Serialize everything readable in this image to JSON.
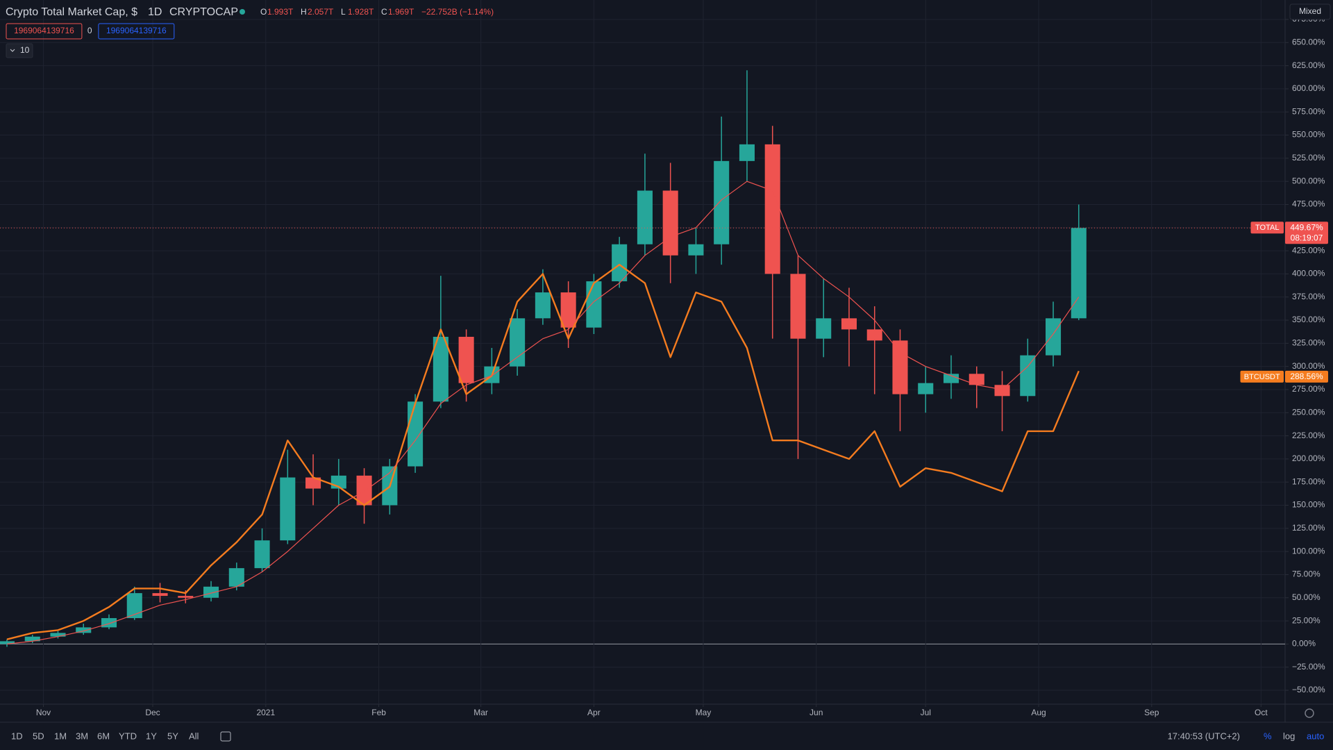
{
  "header": {
    "symbol": "Crypto Total Market Cap, $",
    "interval": "1D",
    "exchange": "CRYPTOCAP",
    "ohlc": [
      {
        "key": "O",
        "value": "1.993T"
      },
      {
        "key": "H",
        "value": "2.057T"
      },
      {
        "key": "L",
        "value": "1.928T"
      },
      {
        "key": "C",
        "value": "1.969T"
      }
    ],
    "change": "−22.752B (−1.14%)",
    "badges": [
      "1969064139716",
      "0",
      "1969064139716"
    ],
    "collapse": "10"
  },
  "scale_mode": "Mixed",
  "chart_data": {
    "type": "candlestick",
    "x": [
      -10,
      -3,
      4,
      11,
      18,
      25,
      32,
      39,
      46,
      53,
      60,
      67,
      74,
      81,
      88,
      95,
      102,
      109,
      116,
      123,
      130,
      137,
      144,
      151,
      158,
      165,
      172,
      179,
      186,
      193,
      200,
      207,
      214,
      221,
      228,
      235,
      242,
      249,
      256,
      263,
      270,
      277,
      284
    ],
    "xlim": [
      -11.9,
      340.6
    ],
    "xticks": [
      {
        "value": 0,
        "label": "Nov"
      },
      {
        "value": 30,
        "label": "Dec"
      },
      {
        "value": 61,
        "label": "2021"
      },
      {
        "value": 92,
        "label": "Feb"
      },
      {
        "value": 120,
        "label": "Mar"
      },
      {
        "value": 151,
        "label": "Apr"
      },
      {
        "value": 181,
        "label": "May"
      },
      {
        "value": 212,
        "label": "Jun"
      },
      {
        "value": 242,
        "label": "Jul"
      },
      {
        "value": 273,
        "label": "Aug"
      },
      {
        "value": 304,
        "label": "Sep"
      },
      {
        "value": 334,
        "label": "Oct"
      }
    ],
    "ylim": [
      -65,
      696
    ],
    "yticks": [
      {
        "value": -50,
        "label": "−50.00%"
      },
      {
        "value": -25,
        "label": "−25.00%"
      },
      {
        "value": 0,
        "label": "0.00%"
      },
      {
        "value": 25,
        "label": "25.00%"
      },
      {
        "value": 50,
        "label": "50.00%"
      },
      {
        "value": 75,
        "label": "75.00%"
      },
      {
        "value": 100,
        "label": "100.00%"
      },
      {
        "value": 125,
        "label": "125.00%"
      },
      {
        "value": 150,
        "label": "150.00%"
      },
      {
        "value": 175,
        "label": "175.00%"
      },
      {
        "value": 200,
        "label": "200.00%"
      },
      {
        "value": 225,
        "label": "225.00%"
      },
      {
        "value": 250,
        "label": "250.00%"
      },
      {
        "value": 275,
        "label": "275.00%"
      },
      {
        "value": 300,
        "label": "300.00%"
      },
      {
        "value": 325,
        "label": "325.00%"
      },
      {
        "value": 350,
        "label": "350.00%"
      },
      {
        "value": 375,
        "label": "375.00%"
      },
      {
        "value": 400,
        "label": "400.00%"
      },
      {
        "value": 425,
        "label": "425.00%"
      },
      {
        "value": 450,
        "label": "450.00%"
      },
      {
        "value": 475,
        "label": "475.00%"
      },
      {
        "value": 500,
        "label": "500.00%"
      },
      {
        "value": 525,
        "label": "525.00%"
      },
      {
        "value": 550,
        "label": "550.00%"
      },
      {
        "value": 575,
        "label": "575.00%"
      },
      {
        "value": 600,
        "label": "600.00%"
      },
      {
        "value": 625,
        "label": "625.00%"
      },
      {
        "value": 650,
        "label": "650.00%"
      },
      {
        "value": 675,
        "label": "675.00%"
      }
    ],
    "grid": true,
    "series": [
      {
        "name": "TOTAL",
        "type": "candlestick",
        "up_color": "#26a69a",
        "down_color": "#ef5350",
        "open": [
          0,
          3,
          8,
          12,
          18,
          28,
          55,
          52,
          50,
          62,
          82,
          112,
          180,
          168,
          182,
          150,
          192,
          262,
          332,
          282,
          300,
          352,
          380,
          342,
          392,
          432,
          490,
          420,
          432,
          522,
          540,
          400,
          330,
          352,
          340,
          328,
          270,
          282,
          292,
          280,
          268,
          312,
          352
        ],
        "high": [
          5,
          10,
          14,
          22,
          32,
          62,
          66,
          58,
          68,
          88,
          125,
          210,
          205,
          200,
          190,
          200,
          270,
          398,
          340,
          320,
          362,
          405,
          392,
          400,
          440,
          530,
          520,
          450,
          570,
          620,
          560,
          420,
          395,
          385,
          365,
          340,
          300,
          312,
          300,
          295,
          330,
          370,
          475
        ],
        "low": [
          -3,
          1,
          6,
          10,
          16,
          26,
          45,
          44,
          46,
          58,
          78,
          108,
          150,
          150,
          130,
          140,
          185,
          255,
          262,
          270,
          290,
          345,
          320,
          335,
          385,
          420,
          390,
          400,
          410,
          500,
          330,
          200,
          310,
          300,
          270,
          230,
          250,
          265,
          255,
          230,
          262,
          300,
          350
        ],
        "close": [
          3,
          8,
          12,
          18,
          28,
          55,
          52,
          50,
          62,
          82,
          112,
          180,
          168,
          182,
          150,
          192,
          262,
          332,
          282,
          300,
          352,
          380,
          342,
          392,
          432,
          490,
          420,
          432,
          522,
          540,
          400,
          330,
          352,
          340,
          328,
          270,
          282,
          292,
          280,
          268,
          312,
          352,
          449.67
        ],
        "tag_value": 449.67,
        "tag_label": "449.67%",
        "countdown": "08:19:07",
        "tag_color": "#ef5350"
      },
      {
        "name": "BTCUSDT",
        "type": "line",
        "color": "#f57c1f",
        "width": 2.4,
        "values": [
          5,
          12,
          15,
          25,
          40,
          60,
          60,
          55,
          85,
          110,
          140,
          220,
          180,
          170,
          150,
          170,
          260,
          340,
          270,
          290,
          370,
          400,
          330,
          390,
          410,
          390,
          310,
          380,
          370,
          320,
          220,
          220,
          210,
          200,
          230,
          170,
          190,
          185,
          175,
          165,
          230,
          230,
          295
        ],
        "tag_value": 288.56,
        "tag_label": "288.56%",
        "tag_color": "#f57c1f"
      },
      {
        "type": "line",
        "color": "#ef5350",
        "width": 1.2,
        "values": [
          0,
          3,
          8,
          14,
          22,
          32,
          42,
          48,
          55,
          62,
          78,
          100,
          125,
          150,
          165,
          185,
          220,
          260,
          280,
          290,
          310,
          330,
          340,
          370,
          390,
          420,
          440,
          450,
          480,
          500,
          490,
          420,
          395,
          375,
          350,
          315,
          300,
          290,
          280,
          275,
          300,
          335,
          375
        ]
      }
    ]
  },
  "footer": {
    "ranges": [
      "1D",
      "5D",
      "1M",
      "3M",
      "6M",
      "YTD",
      "1Y",
      "5Y",
      "All"
    ],
    "clock": "17:40:53 (UTC+2)",
    "toggles": [
      "%",
      "log",
      "auto"
    ]
  }
}
